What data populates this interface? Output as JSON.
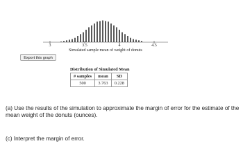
{
  "graph": {
    "type": "histogram-lines",
    "x": [
      3.16,
      3.2,
      3.24,
      3.28,
      3.32,
      3.36,
      3.4,
      3.44,
      3.48,
      3.52,
      3.56,
      3.6,
      3.64,
      3.68,
      3.72,
      3.76,
      3.8,
      3.84,
      3.88,
      3.92,
      3.96,
      4.0,
      4.04,
      4.08,
      4.12,
      4.16,
      4.2,
      4.24,
      4.28,
      4.32
    ],
    "values": [
      1,
      2,
      3,
      4,
      5,
      7,
      10,
      13,
      16,
      20,
      24,
      27,
      30,
      33,
      34,
      35,
      34,
      33,
      30,
      27,
      24,
      20,
      16,
      13,
      10,
      7,
      5,
      4,
      3,
      2
    ],
    "xlim": [
      2.9,
      4.7
    ],
    "xticks": [
      3,
      3.5,
      4,
      4.5
    ],
    "ylim": [
      0,
      40
    ],
    "xlabel": "Simulated sample mean of weight of donuts",
    "color": "#000000"
  },
  "button": "Export this graph",
  "table": {
    "title": "Distribution of Simulated Mean",
    "headers": [
      "# samples",
      "mean",
      "SD"
    ],
    "rows": [
      [
        500,
        3.763,
        0.228
      ]
    ]
  },
  "questions": [
    "(a) Use the results of the simulation to approximate the margin of error for the estimate of the mean weight of the donuts (ounces).",
    "(c) Interpret the margin of error."
  ]
}
